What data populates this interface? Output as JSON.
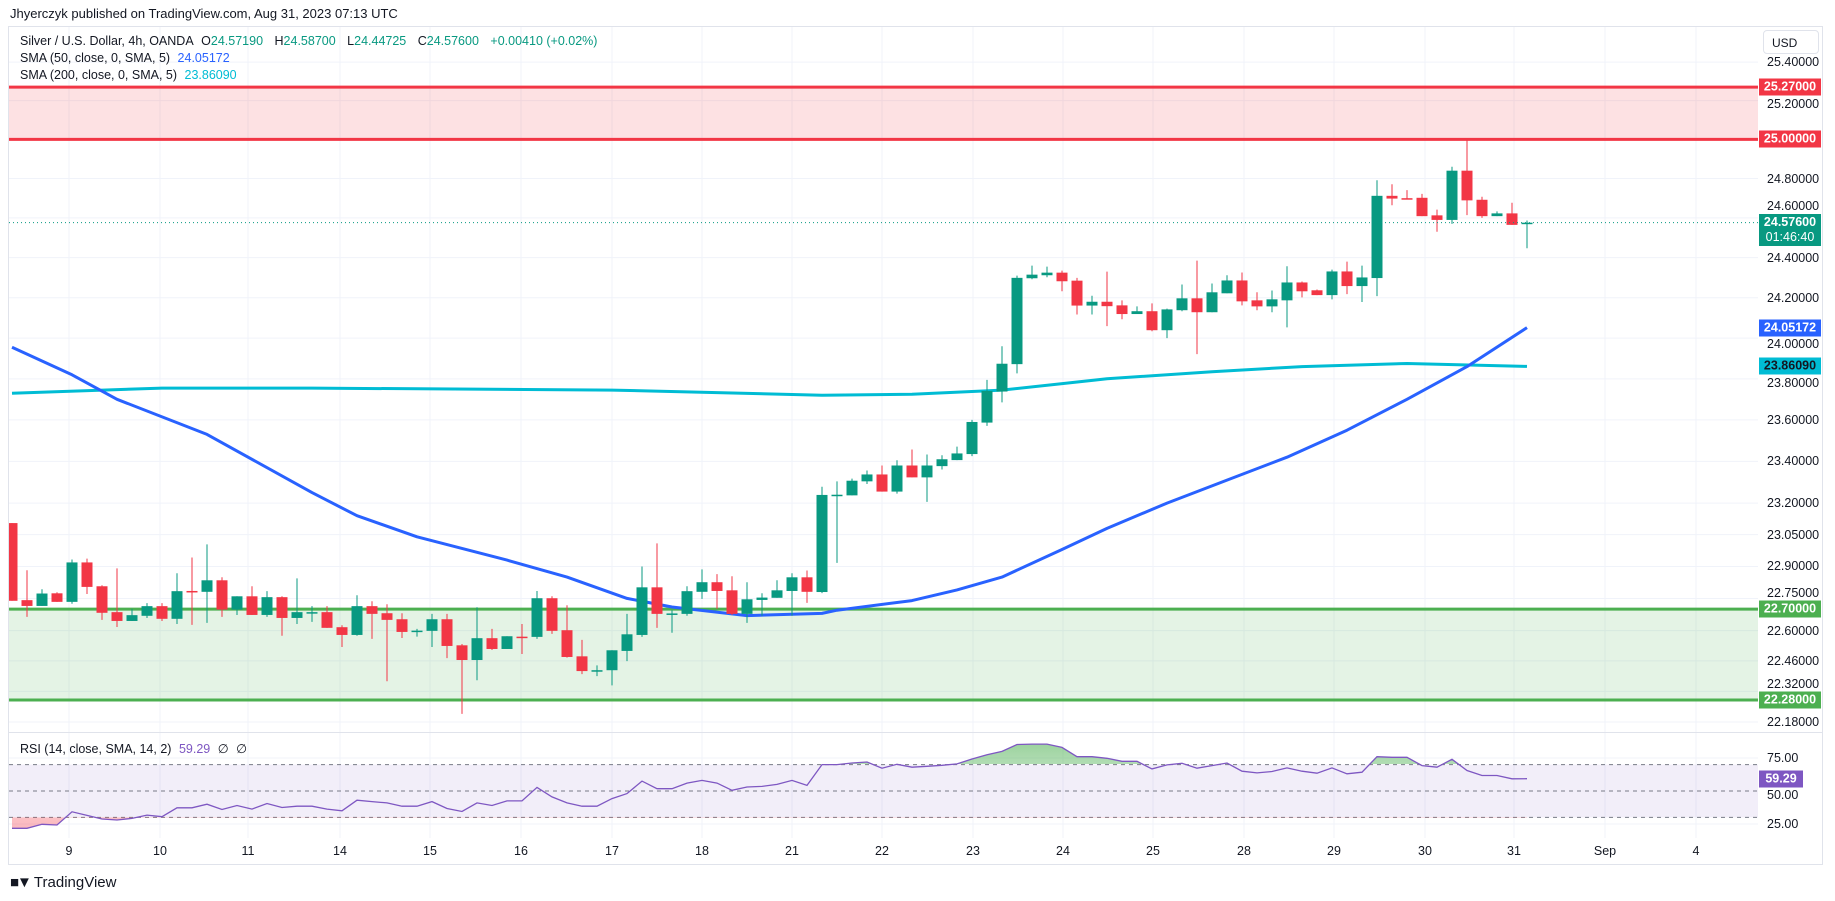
{
  "header": {
    "publisher_line": "Jhyerczyk published on TradingView.com, Aug 31, 2023 07:13 UTC"
  },
  "legend": {
    "symbol": "Silver / U.S. Dollar, 4h, OANDA",
    "o_label": "O",
    "o": "24.57190",
    "h_label": "H",
    "h": "24.58700",
    "l_label": "L",
    "l": "24.44725",
    "c_label": "C",
    "c": "24.57600",
    "change": "+0.00410 (+0.02%)",
    "sma50_label": "SMA (50, close, 0, SMA, 5)",
    "sma50_value": "24.05172",
    "sma200_label": "SMA (200, close, 0, SMA, 5)",
    "sma200_value": "23.86090",
    "rsi_label": "RSI (14, close, SMA, 14, 2)",
    "rsi_value": "59.29",
    "rsi_extra1": "∅",
    "rsi_extra2": "∅"
  },
  "price_axis": {
    "currency": "USD",
    "ticks": [
      "25.40000",
      "25.20000",
      "24.80000",
      "24.60000",
      "24.40000",
      "24.20000",
      "24.00000",
      "23.80000",
      "23.60000",
      "23.40000",
      "23.20000",
      "23.05000",
      "22.90000",
      "22.75000",
      "22.60000",
      "22.46000",
      "22.32000",
      "22.18000"
    ],
    "badges": [
      {
        "name": "resistance-top",
        "value": "25.27000",
        "color": "#f23645",
        "text": "#ffffff"
      },
      {
        "name": "resistance-bottom",
        "value": "25.00000",
        "color": "#f23645",
        "text": "#ffffff"
      },
      {
        "name": "sma50",
        "value": "24.05172",
        "color": "#2962ff",
        "text": "#ffffff"
      },
      {
        "name": "sma200",
        "value": "23.86090",
        "color": "#00bcd4",
        "text": "#131722"
      },
      {
        "name": "support-top",
        "value": "22.70000",
        "color": "#4caf50",
        "text": "#ffffff"
      },
      {
        "name": "support-bottom",
        "value": "22.28000",
        "color": "#4caf50",
        "text": "#ffffff"
      }
    ],
    "last_price": {
      "value": "24.57600",
      "countdown": "01:46:40",
      "color": "#089981"
    }
  },
  "rsi_axis": {
    "ticks": [
      "75.00",
      "50.00",
      "25.00"
    ],
    "current": "59.29",
    "color": "#7e57c2"
  },
  "time_axis": {
    "labels": [
      "9",
      "10",
      "11",
      "14",
      "15",
      "16",
      "17",
      "18",
      "21",
      "22",
      "23",
      "24",
      "25",
      "28",
      "29",
      "30",
      "31",
      "Sep",
      "4"
    ]
  },
  "footer": {
    "logo_text": "TradingView"
  },
  "colors": {
    "up": "#089981",
    "down": "#f23645",
    "sma50": "#2962ff",
    "sma200": "#00bcd4",
    "rsi": "#7e57c2",
    "resistance": "#f23645",
    "support": "#4caf50"
  },
  "chart_data": {
    "type": "candlestick",
    "title": "Silver / U.S. Dollar, 4h, OANDA",
    "candle_fields": [
      "open",
      "high",
      "low",
      "close"
    ],
    "candles": [
      [
        23.105,
        23.105,
        22.739,
        22.739
      ],
      [
        22.742,
        22.882,
        22.664,
        22.715
      ],
      [
        22.715,
        22.793,
        22.715,
        22.773
      ],
      [
        22.774,
        22.779,
        22.734,
        22.734
      ],
      [
        22.734,
        22.933,
        22.725,
        22.919
      ],
      [
        22.919,
        22.937,
        22.771,
        22.804
      ],
      [
        22.807,
        22.812,
        22.65,
        22.683
      ],
      [
        22.686,
        22.891,
        22.617,
        22.645
      ],
      [
        22.645,
        22.701,
        22.645,
        22.672
      ],
      [
        22.669,
        22.728,
        22.659,
        22.714
      ],
      [
        22.714,
        22.728,
        22.645,
        22.655
      ],
      [
        22.655,
        22.868,
        22.631,
        22.784
      ],
      [
        22.785,
        22.942,
        22.627,
        22.781
      ],
      [
        22.781,
        23.004,
        22.636,
        22.835
      ],
      [
        22.835,
        22.849,
        22.664,
        22.698
      ],
      [
        22.698,
        22.76,
        22.673,
        22.76
      ],
      [
        22.76,
        22.807,
        22.673,
        22.673
      ],
      [
        22.673,
        22.784,
        22.664,
        22.756
      ],
      [
        22.756,
        22.76,
        22.576,
        22.659
      ],
      [
        22.659,
        22.844,
        22.631,
        22.686
      ],
      [
        22.684,
        22.714,
        22.641,
        22.686
      ],
      [
        22.686,
        22.714,
        22.613,
        22.613
      ],
      [
        22.616,
        22.625,
        22.524,
        22.58
      ],
      [
        22.58,
        22.765,
        22.576,
        22.714
      ],
      [
        22.714,
        22.737,
        22.562,
        22.678
      ],
      [
        22.681,
        22.723,
        22.366,
        22.65
      ],
      [
        22.653,
        22.681,
        22.566,
        22.594
      ],
      [
        22.594,
        22.608,
        22.572,
        22.6
      ],
      [
        22.599,
        22.678,
        22.524,
        22.653
      ],
      [
        22.653,
        22.678,
        22.473,
        22.529
      ],
      [
        22.532,
        22.538,
        22.217,
        22.464
      ],
      [
        22.464,
        22.709,
        22.371,
        22.565
      ],
      [
        22.565,
        22.608,
        22.51,
        22.515
      ],
      [
        22.515,
        22.574,
        22.515,
        22.574
      ],
      [
        22.572,
        22.631,
        22.492,
        22.571
      ],
      [
        22.571,
        22.785,
        22.562,
        22.751
      ],
      [
        22.751,
        22.76,
        22.585,
        22.599
      ],
      [
        22.602,
        22.718,
        22.475,
        22.478
      ],
      [
        22.481,
        22.557,
        22.399,
        22.413
      ],
      [
        22.414,
        22.439,
        22.39,
        22.417
      ],
      [
        22.417,
        22.509,
        22.347,
        22.509
      ],
      [
        22.506,
        22.678,
        22.459,
        22.583
      ],
      [
        22.58,
        22.9,
        22.571,
        22.802
      ],
      [
        22.802,
        23.009,
        22.613,
        22.678
      ],
      [
        22.678,
        22.695,
        22.59,
        22.68
      ],
      [
        22.678,
        22.807,
        22.669,
        22.784
      ],
      [
        22.781,
        22.886,
        22.748,
        22.826
      ],
      [
        22.826,
        22.864,
        22.701,
        22.785
      ],
      [
        22.788,
        22.854,
        22.673,
        22.678
      ],
      [
        22.678,
        22.826,
        22.636,
        22.746
      ],
      [
        22.743,
        22.774,
        22.669,
        22.754
      ],
      [
        22.753,
        22.835,
        22.753,
        22.788
      ],
      [
        22.785,
        22.868,
        22.669,
        22.849
      ],
      [
        22.849,
        22.881,
        22.729,
        22.781
      ],
      [
        22.78,
        23.278,
        22.775,
        23.239
      ],
      [
        23.238,
        23.304,
        22.917,
        23.24
      ],
      [
        23.237,
        23.317,
        23.237,
        23.307
      ],
      [
        23.304,
        23.356,
        23.291,
        23.337
      ],
      [
        23.337,
        23.38,
        23.255,
        23.255
      ],
      [
        23.255,
        23.405,
        23.245,
        23.38
      ],
      [
        23.38,
        23.457,
        23.323,
        23.323
      ],
      [
        23.323,
        23.433,
        23.206,
        23.38
      ],
      [
        23.377,
        23.429,
        23.361,
        23.41
      ],
      [
        23.406,
        23.471,
        23.406,
        23.438
      ],
      [
        23.435,
        23.6,
        23.425,
        23.59
      ],
      [
        23.587,
        23.795,
        23.571,
        23.741
      ],
      [
        23.738,
        23.96,
        23.685,
        23.874
      ],
      [
        23.872,
        24.31,
        23.827,
        24.299
      ],
      [
        24.297,
        24.36,
        24.292,
        24.315
      ],
      [
        24.312,
        24.355,
        24.302,
        24.325
      ],
      [
        24.325,
        24.335,
        24.232,
        24.282
      ],
      [
        24.285,
        24.299,
        24.117,
        24.161
      ],
      [
        24.161,
        24.21,
        24.117,
        24.18
      ],
      [
        24.18,
        24.33,
        24.059,
        24.158
      ],
      [
        24.162,
        24.187,
        24.093,
        24.119
      ],
      [
        24.119,
        24.157,
        24.119,
        24.133
      ],
      [
        24.133,
        24.172,
        24.034,
        24.039
      ],
      [
        24.039,
        24.146,
        24.0,
        24.142
      ],
      [
        24.138,
        24.266,
        24.133,
        24.197
      ],
      [
        24.197,
        24.385,
        23.921,
        24.128
      ],
      [
        24.128,
        24.271,
        24.128,
        24.227
      ],
      [
        24.222,
        24.312,
        24.222,
        24.286
      ],
      [
        24.286,
        24.326,
        24.162,
        24.182
      ],
      [
        24.187,
        24.227,
        24.138,
        24.157
      ],
      [
        24.157,
        24.236,
        24.128,
        24.192
      ],
      [
        24.187,
        24.357,
        24.053,
        24.276
      ],
      [
        24.276,
        24.281,
        24.202,
        24.232
      ],
      [
        24.237,
        24.241,
        24.213,
        24.213
      ],
      [
        24.213,
        24.34,
        24.192,
        24.331
      ],
      [
        24.331,
        24.38,
        24.218,
        24.258
      ],
      [
        24.258,
        24.36,
        24.179,
        24.301
      ],
      [
        24.298,
        24.791,
        24.208,
        24.712
      ],
      [
        24.712,
        24.771,
        24.664,
        24.698
      ],
      [
        24.7,
        24.741,
        24.698,
        24.698
      ],
      [
        24.702,
        24.722,
        24.609,
        24.609
      ],
      [
        24.613,
        24.642,
        24.53,
        24.59
      ],
      [
        24.59,
        24.86,
        24.57,
        24.84
      ],
      [
        24.84,
        24.999,
        24.614,
        24.689
      ],
      [
        24.692,
        24.707,
        24.6,
        24.609
      ],
      [
        24.609,
        24.633,
        24.609,
        24.623
      ],
      [
        24.623,
        24.677,
        24.565,
        24.565
      ],
      [
        24.5719,
        24.587,
        24.44725,
        24.576
      ]
    ],
    "sma50": [
      [
        0,
        23.955
      ],
      [
        4,
        23.82
      ],
      [
        7,
        23.7
      ],
      [
        13,
        23.53
      ],
      [
        20,
        23.25
      ],
      [
        23,
        23.14
      ],
      [
        27,
        23.04
      ],
      [
        33,
        22.93
      ],
      [
        37,
        22.85
      ],
      [
        41,
        22.75
      ],
      [
        44,
        22.71
      ],
      [
        49,
        22.67
      ],
      [
        54,
        22.68
      ],
      [
        55,
        22.695
      ],
      [
        60,
        22.74
      ],
      [
        63,
        22.79
      ],
      [
        66,
        22.85
      ],
      [
        70,
        22.98
      ],
      [
        73,
        23.08
      ],
      [
        77,
        23.2
      ],
      [
        81,
        23.31
      ],
      [
        85,
        23.42
      ],
      [
        89,
        23.55
      ],
      [
        93,
        23.7
      ],
      [
        97,
        23.86
      ],
      [
        101,
        24.05172
      ]
    ],
    "sma200": [
      [
        0,
        23.73
      ],
      [
        10,
        23.755
      ],
      [
        20,
        23.755
      ],
      [
        40,
        23.745
      ],
      [
        54,
        23.72
      ],
      [
        60,
        23.725
      ],
      [
        66,
        23.745
      ],
      [
        73,
        23.8
      ],
      [
        80,
        23.835
      ],
      [
        86,
        23.86
      ],
      [
        93,
        23.875
      ],
      [
        101,
        23.8609
      ]
    ],
    "zones": [
      {
        "name": "resistance",
        "low": 25.0,
        "high": 25.27
      },
      {
        "name": "support",
        "low": 22.28,
        "high": 22.7
      }
    ],
    "last_price": 24.576,
    "rsi": {
      "levels": [
        70,
        50,
        30
      ],
      "values": [
        21.75,
        21.75,
        24.75,
        24.25,
        34.25,
        31.5,
        28.75,
        28,
        29.25,
        31.75,
        30.5,
        37.25,
        37.25,
        40,
        36,
        39,
        36.25,
        40.5,
        37.5,
        38.5,
        38.5,
        36.25,
        35,
        43,
        42,
        41,
        38.5,
        38.5,
        42,
        36.75,
        34.5,
        41,
        39,
        42.5,
        42.5,
        52.75,
        45.5,
        41,
        38.5,
        38.5,
        44.25,
        48,
        57.5,
        51.75,
        51.75,
        56,
        58,
        56,
        50.5,
        53,
        53.5,
        55,
        58,
        54.25,
        70,
        70,
        71.25,
        72,
        67.25,
        70.25,
        68,
        68.75,
        69.5,
        70.5,
        74.25,
        77.5,
        80,
        85.25,
        85.5,
        85.5,
        83,
        76,
        76,
        74.75,
        72.5,
        72.5,
        66.75,
        69.75,
        71,
        67.25,
        69.25,
        71.25,
        65,
        63.75,
        64.75,
        67.5,
        65,
        63.5,
        67.5,
        63,
        64.25,
        76,
        75.5,
        75.5,
        69.25,
        68,
        74,
        65.5,
        61.75,
        61.75,
        59.25,
        59.29
      ]
    },
    "ylim": [
      22.18,
      25.4
    ],
    "grid": true
  }
}
